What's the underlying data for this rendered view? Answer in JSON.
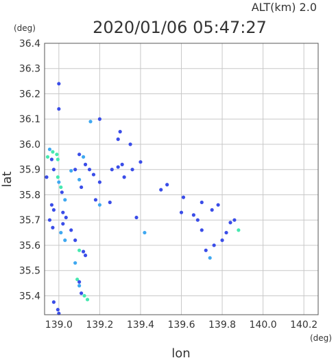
{
  "header": {
    "altitude_label": "ALT(km)  2.0",
    "timestamp": "2020/01/06  05:47:27",
    "y_unit": "(deg)",
    "x_unit": "(deg)"
  },
  "chart_data": {
    "type": "scatter",
    "title": "2020/01/06  05:47:27",
    "xlabel": "lon",
    "ylabel": "lat",
    "xlim": [
      138.93,
      140.27
    ],
    "ylim": [
      35.325,
      36.4
    ],
    "x_ticks": [
      "139.0",
      "139.2",
      "139.4",
      "139.6",
      "139.8",
      "140.0",
      "140.2"
    ],
    "x_tick_values": [
      139.0,
      139.2,
      139.4,
      139.6,
      139.8,
      140.0,
      140.2
    ],
    "y_ticks": [
      "36.4",
      "36.3",
      "36.2",
      "36.1",
      "36.0",
      "35.9",
      "35.8",
      "35.7",
      "35.6",
      "35.5",
      "35.4"
    ],
    "y_tick_values": [
      36.4,
      36.3,
      36.2,
      36.1,
      36.0,
      35.9,
      35.8,
      35.7,
      35.6,
      35.5,
      35.4
    ],
    "grid": true,
    "colors": {
      "low": "#3a4de8",
      "mid": "#3fa8f0",
      "high": "#46e8b0"
    },
    "points": [
      {
        "lon": 138.955,
        "lat": 35.98,
        "v": "mid"
      },
      {
        "lon": 138.97,
        "lat": 35.97,
        "v": "high"
      },
      {
        "lon": 138.945,
        "lat": 35.95,
        "v": "high"
      },
      {
        "lon": 138.965,
        "lat": 35.94,
        "v": "low"
      },
      {
        "lon": 138.99,
        "lat": 35.96,
        "v": "high"
      },
      {
        "lon": 138.995,
        "lat": 35.94,
        "v": "high"
      },
      {
        "lon": 138.975,
        "lat": 35.9,
        "v": "low"
      },
      {
        "lon": 138.94,
        "lat": 35.87,
        "v": "low"
      },
      {
        "lon": 138.995,
        "lat": 35.87,
        "v": "high"
      },
      {
        "lon": 139.0,
        "lat": 35.85,
        "v": "mid"
      },
      {
        "lon": 139.01,
        "lat": 35.83,
        "v": "high"
      },
      {
        "lon": 139.015,
        "lat": 35.81,
        "v": "low"
      },
      {
        "lon": 139.03,
        "lat": 35.78,
        "v": "mid"
      },
      {
        "lon": 138.965,
        "lat": 35.76,
        "v": "low"
      },
      {
        "lon": 138.975,
        "lat": 35.74,
        "v": "low"
      },
      {
        "lon": 138.955,
        "lat": 35.7,
        "v": "low"
      },
      {
        "lon": 138.97,
        "lat": 35.67,
        "v": "low"
      },
      {
        "lon": 139.02,
        "lat": 35.73,
        "v": "low"
      },
      {
        "lon": 139.035,
        "lat": 35.71,
        "v": "low"
      },
      {
        "lon": 139.02,
        "lat": 35.685,
        "v": "low"
      },
      {
        "lon": 139.01,
        "lat": 35.65,
        "v": "mid"
      },
      {
        "lon": 139.03,
        "lat": 35.62,
        "v": "mid"
      },
      {
        "lon": 139.06,
        "lat": 35.66,
        "v": "low"
      },
      {
        "lon": 139.08,
        "lat": 35.62,
        "v": "low"
      },
      {
        "lon": 139.1,
        "lat": 35.58,
        "v": "high"
      },
      {
        "lon": 139.12,
        "lat": 35.575,
        "v": "low"
      },
      {
        "lon": 139.13,
        "lat": 35.56,
        "v": "low"
      },
      {
        "lon": 139.08,
        "lat": 35.53,
        "v": "mid"
      },
      {
        "lon": 139.09,
        "lat": 35.465,
        "v": "high"
      },
      {
        "lon": 139.1,
        "lat": 35.455,
        "v": "low"
      },
      {
        "lon": 139.1,
        "lat": 35.44,
        "v": "mid"
      },
      {
        "lon": 139.11,
        "lat": 35.41,
        "v": "low"
      },
      {
        "lon": 139.125,
        "lat": 35.4,
        "v": "high"
      },
      {
        "lon": 139.14,
        "lat": 35.385,
        "v": "high"
      },
      {
        "lon": 138.975,
        "lat": 35.375,
        "v": "low"
      },
      {
        "lon": 138.995,
        "lat": 35.345,
        "v": "low"
      },
      {
        "lon": 139.0,
        "lat": 35.33,
        "v": "low"
      },
      {
        "lon": 139.08,
        "lat": 35.9,
        "v": "low"
      },
      {
        "lon": 139.06,
        "lat": 35.895,
        "v": "mid"
      },
      {
        "lon": 139.1,
        "lat": 35.96,
        "v": "low"
      },
      {
        "lon": 139.12,
        "lat": 35.95,
        "v": "mid"
      },
      {
        "lon": 139.13,
        "lat": 35.92,
        "v": "low"
      },
      {
        "lon": 139.15,
        "lat": 35.9,
        "v": "low"
      },
      {
        "lon": 139.1,
        "lat": 35.86,
        "v": "mid"
      },
      {
        "lon": 139.11,
        "lat": 35.83,
        "v": "low"
      },
      {
        "lon": 139.17,
        "lat": 35.88,
        "v": "low"
      },
      {
        "lon": 139.18,
        "lat": 35.78,
        "v": "low"
      },
      {
        "lon": 139.2,
        "lat": 35.76,
        "v": "mid"
      },
      {
        "lon": 139.2,
        "lat": 35.85,
        "v": "low"
      },
      {
        "lon": 139.26,
        "lat": 35.9,
        "v": "low"
      },
      {
        "lon": 139.29,
        "lat": 35.91,
        "v": "low"
      },
      {
        "lon": 139.31,
        "lat": 35.92,
        "v": "low"
      },
      {
        "lon": 139.32,
        "lat": 35.87,
        "v": "low"
      },
      {
        "lon": 139.36,
        "lat": 35.9,
        "v": "low"
      },
      {
        "lon": 139.4,
        "lat": 35.93,
        "v": "low"
      },
      {
        "lon": 139.3,
        "lat": 36.05,
        "v": "low"
      },
      {
        "lon": 139.29,
        "lat": 36.02,
        "v": "low"
      },
      {
        "lon": 139.2,
        "lat": 36.1,
        "v": "low"
      },
      {
        "lon": 139.155,
        "lat": 36.09,
        "v": "mid"
      },
      {
        "lon": 139.0,
        "lat": 36.14,
        "v": "low"
      },
      {
        "lon": 139.0,
        "lat": 36.24,
        "v": "low"
      },
      {
        "lon": 139.5,
        "lat": 35.82,
        "v": "low"
      },
      {
        "lon": 139.53,
        "lat": 35.84,
        "v": "low"
      },
      {
        "lon": 139.61,
        "lat": 35.79,
        "v": "low"
      },
      {
        "lon": 139.6,
        "lat": 35.73,
        "v": "low"
      },
      {
        "lon": 139.66,
        "lat": 35.72,
        "v": "low"
      },
      {
        "lon": 139.68,
        "lat": 35.7,
        "v": "low"
      },
      {
        "lon": 139.7,
        "lat": 35.77,
        "v": "low"
      },
      {
        "lon": 139.75,
        "lat": 35.74,
        "v": "low"
      },
      {
        "lon": 139.78,
        "lat": 35.76,
        "v": "low"
      },
      {
        "lon": 139.84,
        "lat": 35.69,
        "v": "low"
      },
      {
        "lon": 139.86,
        "lat": 35.7,
        "v": "low"
      },
      {
        "lon": 139.88,
        "lat": 35.66,
        "v": "high"
      },
      {
        "lon": 139.82,
        "lat": 35.65,
        "v": "low"
      },
      {
        "lon": 139.8,
        "lat": 35.62,
        "v": "low"
      },
      {
        "lon": 139.76,
        "lat": 35.6,
        "v": "low"
      },
      {
        "lon": 139.72,
        "lat": 35.58,
        "v": "low"
      },
      {
        "lon": 139.74,
        "lat": 35.55,
        "v": "mid"
      },
      {
        "lon": 139.7,
        "lat": 35.66,
        "v": "low"
      },
      {
        "lon": 139.42,
        "lat": 35.65,
        "v": "mid"
      },
      {
        "lon": 139.38,
        "lat": 35.71,
        "v": "low"
      },
      {
        "lon": 139.25,
        "lat": 35.77,
        "v": "low"
      },
      {
        "lon": 139.35,
        "lat": 36.0,
        "v": "low"
      }
    ]
  }
}
